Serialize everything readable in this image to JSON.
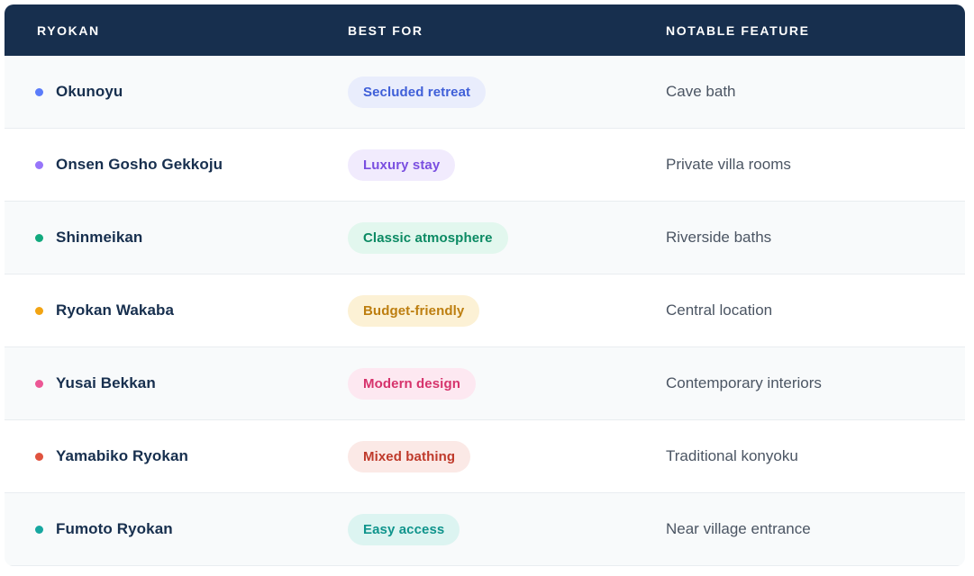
{
  "chart_data": {
    "type": "table",
    "columns": [
      "RYOKAN",
      "BEST FOR",
      "NOTABLE FEATURE"
    ],
    "rows": [
      {
        "ryokan": "Okunoyu",
        "best_for": "Secluded retreat",
        "notable_feature": "Cave bath",
        "dot_color": "#5b7cfa",
        "badge_text_color": "#3f5fd8",
        "badge_bg_color": "#e9edfc"
      },
      {
        "ryokan": "Onsen Gosho Gekkoju",
        "best_for": "Luxury stay",
        "notable_feature": "Private villa rooms",
        "dot_color": "#9775fa",
        "badge_text_color": "#7a4fe0",
        "badge_bg_color": "#f1ebfd"
      },
      {
        "ryokan": "Shinmeikan",
        "best_for": "Classic atmosphere",
        "notable_feature": "Riverside baths",
        "dot_color": "#12a97e",
        "badge_text_color": "#0b8a63",
        "badge_bg_color": "#e2f7ee"
      },
      {
        "ryokan": "Ryokan Wakaba",
        "best_for": "Budget-friendly",
        "notable_feature": "Central location",
        "dot_color": "#f2a413",
        "badge_text_color": "#bd7e0f",
        "badge_bg_color": "#fcf1d5"
      },
      {
        "ryokan": "Yusai Bekkan",
        "best_for": "Modern design",
        "notable_feature": "Contemporary interiors",
        "dot_color": "#ec5795",
        "badge_text_color": "#d6336c",
        "badge_bg_color": "#fde8f1"
      },
      {
        "ryokan": "Yamabiko Ryokan",
        "best_for": "Mixed bathing",
        "notable_feature": "Traditional konyoku",
        "dot_color": "#e0533f",
        "badge_text_color": "#bf3a2b",
        "badge_bg_color": "#fbe9e6"
      },
      {
        "ryokan": "Fumoto Ryokan",
        "best_for": "Easy access",
        "notable_feature": "Near village entrance",
        "dot_color": "#17a7a0",
        "badge_text_color": "#0f948c",
        "badge_bg_color": "#dcf4f1"
      }
    ]
  },
  "style": {
    "header_bg": "#172f4e",
    "header_text": "#ffffff",
    "name_color": "#172f4e",
    "feature_color": "#4b5563",
    "row_bg": "#ffffff",
    "row_alt_bg": "#f8fafb",
    "divider_color": "#e9edf0"
  }
}
